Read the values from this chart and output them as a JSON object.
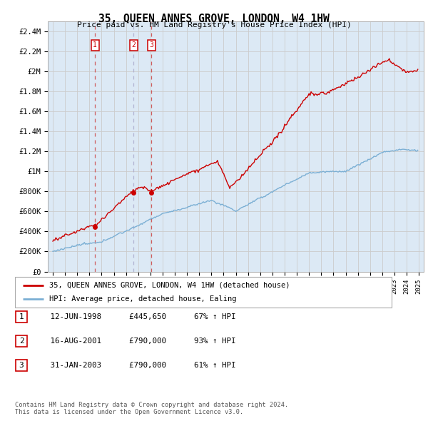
{
  "title": "35, QUEEN ANNES GROVE, LONDON, W4 1HW",
  "subtitle": "Price paid vs. HM Land Registry's House Price Index (HPI)",
  "background_color": "#ffffff",
  "grid_color": "#cccccc",
  "plot_bg_color": "#dce9f5",
  "red_color": "#cc0000",
  "blue_color": "#7bafd4",
  "sale_markers": [
    {
      "label": "1",
      "date_num": 1998.46,
      "price": 445650,
      "vline_color": "#cc4444",
      "vline_style": "--"
    },
    {
      "label": "2",
      "date_num": 2001.62,
      "price": 790000,
      "vline_color": "#aaaacc",
      "vline_style": "--"
    },
    {
      "label": "3",
      "date_num": 2003.08,
      "price": 790000,
      "vline_color": "#cc4444",
      "vline_style": "--"
    }
  ],
  "legend_line1": "35, QUEEN ANNES GROVE, LONDON, W4 1HW (detached house)",
  "legend_line2": "HPI: Average price, detached house, Ealing",
  "table_rows": [
    [
      "1",
      "12-JUN-1998",
      "£445,650",
      "67% ↑ HPI"
    ],
    [
      "2",
      "16-AUG-2001",
      "£790,000",
      "93% ↑ HPI"
    ],
    [
      "3",
      "31-JAN-2003",
      "£790,000",
      "61% ↑ HPI"
    ]
  ],
  "footer": "Contains HM Land Registry data © Crown copyright and database right 2024.\nThis data is licensed under the Open Government Licence v3.0.",
  "xlim": [
    1994.6,
    2025.4
  ],
  "ylim": [
    0,
    2500000
  ],
  "yticks": [
    0,
    200000,
    400000,
    600000,
    800000,
    1000000,
    1200000,
    1400000,
    1600000,
    1800000,
    2000000,
    2200000,
    2400000
  ],
  "ytick_labels": [
    "£0",
    "£200K",
    "£400K",
    "£600K",
    "£800K",
    "£1M",
    "£1.2M",
    "£1.4M",
    "£1.6M",
    "£1.8M",
    "£2M",
    "£2.2M",
    "£2.4M"
  ]
}
